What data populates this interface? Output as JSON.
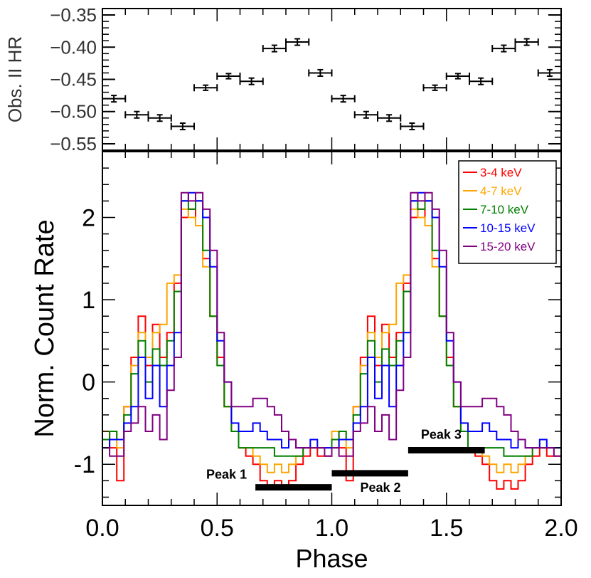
{
  "chart_data": [
    {
      "type": "scatter",
      "name": "hardness-ratio",
      "ylabel": "Obs. II HR",
      "xlim": [
        0.0,
        2.0
      ],
      "ylim": [
        -0.56,
        -0.34
      ],
      "yticks": [
        -0.35,
        -0.4,
        -0.45,
        -0.5,
        -0.55
      ],
      "ytick_labels": [
        "−0.35",
        "−0.40",
        "−0.45",
        "−0.50",
        "−0.55"
      ],
      "x": [
        0.05,
        0.15,
        0.25,
        0.35,
        0.45,
        0.55,
        0.65,
        0.75,
        0.85,
        0.95,
        1.05,
        1.15,
        1.25,
        1.35,
        1.45,
        1.55,
        1.65,
        1.75,
        1.85,
        1.95
      ],
      "y": [
        -0.48,
        -0.505,
        -0.51,
        -0.523,
        -0.463,
        -0.445,
        -0.453,
        -0.402,
        -0.392,
        -0.44,
        -0.48,
        -0.505,
        -0.51,
        -0.523,
        -0.463,
        -0.445,
        -0.453,
        -0.402,
        -0.392,
        -0.44
      ],
      "x_err": 0.05,
      "y_err": [
        0.005,
        0.005,
        0.005,
        0.005,
        0.004,
        0.004,
        0.005,
        0.005,
        0.005,
        0.005,
        0.005,
        0.005,
        0.005,
        0.005,
        0.004,
        0.004,
        0.005,
        0.005,
        0.005,
        0.005
      ]
    },
    {
      "type": "line",
      "name": "pulse-profiles",
      "xlabel": "Phase",
      "ylabel": "Norm. Count Rate",
      "xlim": [
        0.0,
        2.0
      ],
      "ylim": [
        -1.5,
        2.8
      ],
      "xticks": [
        0.0,
        0.5,
        1.0,
        1.5,
        2.0
      ],
      "xtick_labels": [
        "0.0",
        "0.5",
        "1.0",
        "1.5",
        "2.0"
      ],
      "yticks": [
        -1,
        0,
        1,
        2
      ],
      "ytick_labels": [
        "-1",
        "0",
        "1",
        "2"
      ],
      "bin_width": 0.03125,
      "series": [
        {
          "name": "3-4 keV",
          "color": "#ff0000",
          "values": [
            -0.6,
            -0.8,
            -1.2,
            -0.3,
            0.3,
            0.8,
            0.2,
            0.7,
            0.3,
            0.6,
            1.2,
            2.0,
            2.1,
            1.9,
            1.5,
            0.8,
            0.3,
            -0.3,
            -0.6,
            -0.8,
            -0.9,
            -1.0,
            -1.2,
            -1.3,
            -1.2,
            -1.3,
            -1.2,
            -1.0,
            -0.9,
            -0.8,
            -0.9,
            -0.9
          ]
        },
        {
          "name": "4-7 keV",
          "color": "#ffa500",
          "values": [
            -0.6,
            -0.6,
            -0.8,
            -0.3,
            0.2,
            0.6,
            0.3,
            0.6,
            0.7,
            1.2,
            1.3,
            2.1,
            2.0,
            1.9,
            1.4,
            0.8,
            0.2,
            -0.3,
            -0.6,
            -0.8,
            -0.8,
            -0.9,
            -1.0,
            -1.1,
            -1.0,
            -1.1,
            -1.0,
            -0.9,
            -0.8,
            -0.8,
            -0.8,
            -0.8
          ]
        },
        {
          "name": "7-10 keV",
          "color": "#008000",
          "values": [
            -0.7,
            -0.6,
            -0.7,
            -0.4,
            0.1,
            0.5,
            0.0,
            0.4,
            0.2,
            0.5,
            1.1,
            2.2,
            2.1,
            2.2,
            1.6,
            0.8,
            0.2,
            -0.3,
            -0.6,
            -0.8,
            -0.8,
            -0.8,
            -0.8,
            -0.8,
            -0.9,
            -0.9,
            -0.9,
            -0.9,
            -0.8,
            -0.8,
            -0.8,
            -0.8
          ]
        },
        {
          "name": "10-15 keV",
          "color": "#0000ff",
          "values": [
            -0.8,
            -0.7,
            -0.7,
            -0.5,
            -0.3,
            0.3,
            -0.2,
            0.2,
            -0.3,
            0.2,
            0.6,
            2.2,
            2.3,
            2.2,
            2.0,
            1.4,
            0.5,
            0.0,
            -0.5,
            -0.6,
            -0.6,
            -0.5,
            -0.6,
            -0.7,
            -0.7,
            -0.8,
            -0.7,
            -0.8,
            -0.8,
            -0.7,
            -0.8,
            -0.8
          ]
        },
        {
          "name": "15-20 keV",
          "color": "#800080",
          "values": [
            -0.8,
            -0.9,
            -0.9,
            -0.6,
            -0.5,
            -0.3,
            -0.6,
            -0.4,
            -0.7,
            -0.1,
            0.3,
            2.3,
            2.2,
            2.3,
            2.1,
            1.6,
            0.6,
            0.0,
            -0.3,
            -0.3,
            -0.3,
            -0.2,
            -0.2,
            -0.3,
            -0.4,
            -0.6,
            -0.7,
            -0.8,
            -0.8,
            -0.8,
            -0.8,
            -0.9
          ]
        }
      ],
      "bars": [
        {
          "label": "Peak 1",
          "x_start": 0.667,
          "x_end": 1.0,
          "y": -1.28
        },
        {
          "label": "Peak 2",
          "x_start": 1.0,
          "x_end": 1.333,
          "y": -1.11
        },
        {
          "label": "Peak 3",
          "x_start": 1.333,
          "x_end": 1.667,
          "y": -0.83
        }
      ],
      "legend_position": "top-right"
    }
  ]
}
